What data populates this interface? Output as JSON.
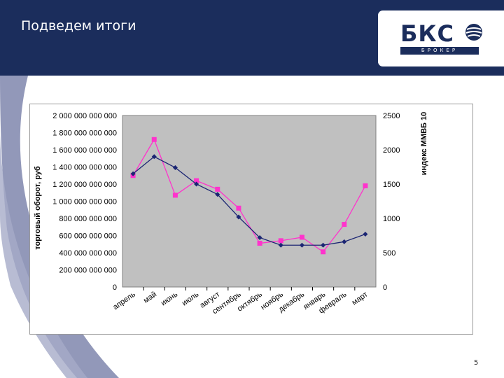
{
  "slide": {
    "title": "Подведем итоги",
    "page_number": "5"
  },
  "logo": {
    "text": "БКС",
    "subtitle": "БРОКЕР"
  },
  "colors": {
    "header": "#1b2d5c",
    "plot_bg": "#c0c0c0",
    "series_turnover": "#ff33cc",
    "series_index": "#1b2573"
  },
  "chart_data": {
    "type": "line",
    "title": "",
    "categories": [
      "апрель",
      "май",
      "июнь",
      "июль",
      "август",
      "сентябрь",
      "октябрь",
      "ноябрь",
      "декабрь",
      "январь",
      "февраль",
      "март"
    ],
    "ylabel": "торговый оборот, руб",
    "y2label": "индекс ММВБ 10",
    "ylim": [
      0,
      2000000000000
    ],
    "y2lim": [
      0,
      2500
    ],
    "yticks": [
      "0",
      "200 000 000 000",
      "400 000 000 000",
      "600 000 000 000",
      "800 000 000 000",
      "1 000 000 000 000",
      "1 200 000 000 000",
      "1 400 000 000 000",
      "1 600 000 000 000",
      "1 800 000 000 000",
      "2 000 000 000 000"
    ],
    "y2ticks": [
      "0",
      "500",
      "1000",
      "1500",
      "2000",
      "2500"
    ],
    "grid": false,
    "legend": "none",
    "series": [
      {
        "axis": "left",
        "color": "#ff33cc",
        "marker": "square",
        "values": [
          1300000000000,
          1720000000000,
          1070000000000,
          1240000000000,
          1140000000000,
          920000000000,
          510000000000,
          540000000000,
          580000000000,
          410000000000,
          730000000000,
          1180000000000
        ]
      },
      {
        "axis": "right",
        "color": "#1b2573",
        "marker": "diamond",
        "values": [
          1650,
          1900,
          1740,
          1500,
          1350,
          1020,
          720,
          610,
          610,
          610,
          660,
          770
        ]
      }
    ]
  }
}
